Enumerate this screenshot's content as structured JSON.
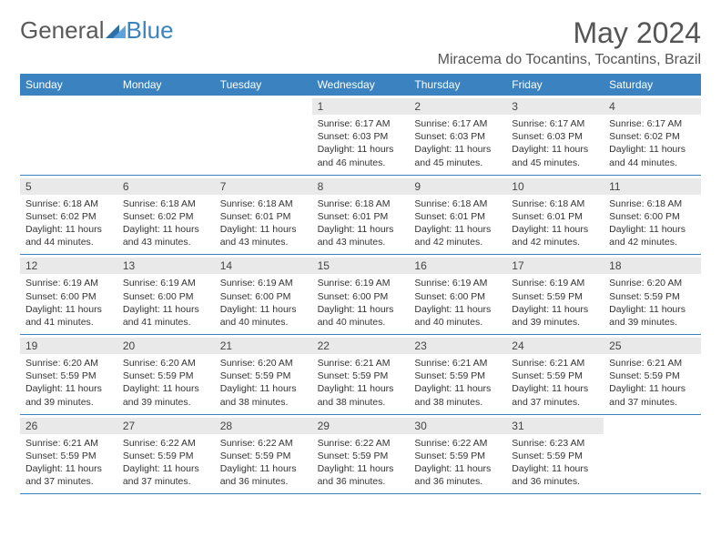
{
  "logo": {
    "text1": "General",
    "text2": "Blue"
  },
  "title": "May 2024",
  "location": "Miracema do Tocantins, Tocantins, Brazil",
  "colors": {
    "header_bg": "#3b83c0",
    "header_text": "#ffffff",
    "daynum_bg": "#e9e9e9",
    "border": "#3b83c0",
    "body_text": "#333333",
    "title_text": "#555555"
  },
  "daysOfWeek": [
    "Sunday",
    "Monday",
    "Tuesday",
    "Wednesday",
    "Thursday",
    "Friday",
    "Saturday"
  ],
  "weeks": [
    [
      {
        "empty": true
      },
      {
        "empty": true
      },
      {
        "empty": true
      },
      {
        "num": "1",
        "sunrise": "6:17 AM",
        "sunset": "6:03 PM",
        "daylight": "11 hours and 46 minutes."
      },
      {
        "num": "2",
        "sunrise": "6:17 AM",
        "sunset": "6:03 PM",
        "daylight": "11 hours and 45 minutes."
      },
      {
        "num": "3",
        "sunrise": "6:17 AM",
        "sunset": "6:03 PM",
        "daylight": "11 hours and 45 minutes."
      },
      {
        "num": "4",
        "sunrise": "6:17 AM",
        "sunset": "6:02 PM",
        "daylight": "11 hours and 44 minutes."
      }
    ],
    [
      {
        "num": "5",
        "sunrise": "6:18 AM",
        "sunset": "6:02 PM",
        "daylight": "11 hours and 44 minutes."
      },
      {
        "num": "6",
        "sunrise": "6:18 AM",
        "sunset": "6:02 PM",
        "daylight": "11 hours and 43 minutes."
      },
      {
        "num": "7",
        "sunrise": "6:18 AM",
        "sunset": "6:01 PM",
        "daylight": "11 hours and 43 minutes."
      },
      {
        "num": "8",
        "sunrise": "6:18 AM",
        "sunset": "6:01 PM",
        "daylight": "11 hours and 43 minutes."
      },
      {
        "num": "9",
        "sunrise": "6:18 AM",
        "sunset": "6:01 PM",
        "daylight": "11 hours and 42 minutes."
      },
      {
        "num": "10",
        "sunrise": "6:18 AM",
        "sunset": "6:01 PM",
        "daylight": "11 hours and 42 minutes."
      },
      {
        "num": "11",
        "sunrise": "6:18 AM",
        "sunset": "6:00 PM",
        "daylight": "11 hours and 42 minutes."
      }
    ],
    [
      {
        "num": "12",
        "sunrise": "6:19 AM",
        "sunset": "6:00 PM",
        "daylight": "11 hours and 41 minutes."
      },
      {
        "num": "13",
        "sunrise": "6:19 AM",
        "sunset": "6:00 PM",
        "daylight": "11 hours and 41 minutes."
      },
      {
        "num": "14",
        "sunrise": "6:19 AM",
        "sunset": "6:00 PM",
        "daylight": "11 hours and 40 minutes."
      },
      {
        "num": "15",
        "sunrise": "6:19 AM",
        "sunset": "6:00 PM",
        "daylight": "11 hours and 40 minutes."
      },
      {
        "num": "16",
        "sunrise": "6:19 AM",
        "sunset": "6:00 PM",
        "daylight": "11 hours and 40 minutes."
      },
      {
        "num": "17",
        "sunrise": "6:19 AM",
        "sunset": "5:59 PM",
        "daylight": "11 hours and 39 minutes."
      },
      {
        "num": "18",
        "sunrise": "6:20 AM",
        "sunset": "5:59 PM",
        "daylight": "11 hours and 39 minutes."
      }
    ],
    [
      {
        "num": "19",
        "sunrise": "6:20 AM",
        "sunset": "5:59 PM",
        "daylight": "11 hours and 39 minutes."
      },
      {
        "num": "20",
        "sunrise": "6:20 AM",
        "sunset": "5:59 PM",
        "daylight": "11 hours and 39 minutes."
      },
      {
        "num": "21",
        "sunrise": "6:20 AM",
        "sunset": "5:59 PM",
        "daylight": "11 hours and 38 minutes."
      },
      {
        "num": "22",
        "sunrise": "6:21 AM",
        "sunset": "5:59 PM",
        "daylight": "11 hours and 38 minutes."
      },
      {
        "num": "23",
        "sunrise": "6:21 AM",
        "sunset": "5:59 PM",
        "daylight": "11 hours and 38 minutes."
      },
      {
        "num": "24",
        "sunrise": "6:21 AM",
        "sunset": "5:59 PM",
        "daylight": "11 hours and 37 minutes."
      },
      {
        "num": "25",
        "sunrise": "6:21 AM",
        "sunset": "5:59 PM",
        "daylight": "11 hours and 37 minutes."
      }
    ],
    [
      {
        "num": "26",
        "sunrise": "6:21 AM",
        "sunset": "5:59 PM",
        "daylight": "11 hours and 37 minutes."
      },
      {
        "num": "27",
        "sunrise": "6:22 AM",
        "sunset": "5:59 PM",
        "daylight": "11 hours and 37 minutes."
      },
      {
        "num": "28",
        "sunrise": "6:22 AM",
        "sunset": "5:59 PM",
        "daylight": "11 hours and 36 minutes."
      },
      {
        "num": "29",
        "sunrise": "6:22 AM",
        "sunset": "5:59 PM",
        "daylight": "11 hours and 36 minutes."
      },
      {
        "num": "30",
        "sunrise": "6:22 AM",
        "sunset": "5:59 PM",
        "daylight": "11 hours and 36 minutes."
      },
      {
        "num": "31",
        "sunrise": "6:23 AM",
        "sunset": "5:59 PM",
        "daylight": "11 hours and 36 minutes."
      },
      {
        "empty": true
      }
    ]
  ],
  "labels": {
    "sunrise": "Sunrise:",
    "sunset": "Sunset:",
    "daylight": "Daylight:"
  }
}
